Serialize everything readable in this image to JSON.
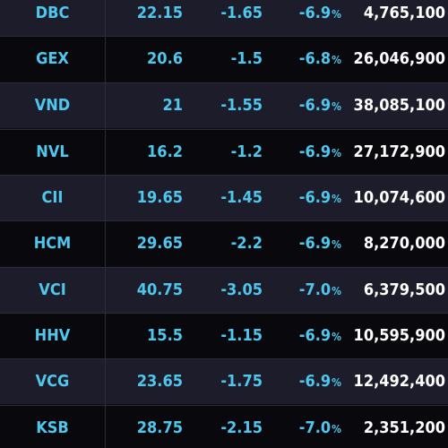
{
  "table": {
    "colors": {
      "ticker": "#4fc6ec",
      "volume": "#ffffff",
      "row_dark": "#08080d",
      "row_light": "#1d1c2a"
    },
    "rows": [
      {
        "symbol": "DBC",
        "price": "22.15",
        "change": "-1.65",
        "pct": "-6.9",
        "pct_unit": "%",
        "volume": "4,765,100"
      },
      {
        "symbol": "GEX",
        "price": "20.6",
        "change": "-1.5",
        "pct": "-6.8",
        "pct_unit": "%",
        "volume": "26,046,900"
      },
      {
        "symbol": "VND",
        "price": "21",
        "change": "-1.55",
        "pct": "-6.9",
        "pct_unit": "%",
        "volume": "38,085,100"
      },
      {
        "symbol": "NVL",
        "price": "16.2",
        "change": "-1.2",
        "pct": "-6.9",
        "pct_unit": "%",
        "volume": "27,172,900"
      },
      {
        "symbol": "CII",
        "price": "19.65",
        "change": "-1.45",
        "pct": "-6.9",
        "pct_unit": "%",
        "volume": "10,074,600"
      },
      {
        "symbol": "HCM",
        "price": "29.65",
        "change": "-2.2",
        "pct": "-6.9",
        "pct_unit": "%",
        "volume": "8,270,000"
      },
      {
        "symbol": "VCI",
        "price": "40.75",
        "change": "-3.05",
        "pct": "-7.0",
        "pct_unit": "%",
        "volume": "6,379,500"
      },
      {
        "symbol": "HHV",
        "price": "15.5",
        "change": "-1.15",
        "pct": "-6.9",
        "pct_unit": "%",
        "volume": "10,595,900"
      },
      {
        "symbol": "VCG",
        "price": "23.65",
        "change": "-1.75",
        "pct": "-6.9",
        "pct_unit": "%",
        "volume": "12,492,400"
      },
      {
        "symbol": "KSB",
        "price": "28.75",
        "change": "-2.15",
        "pct": "-7.0",
        "pct_unit": "%",
        "volume": "2,351,200"
      }
    ]
  }
}
